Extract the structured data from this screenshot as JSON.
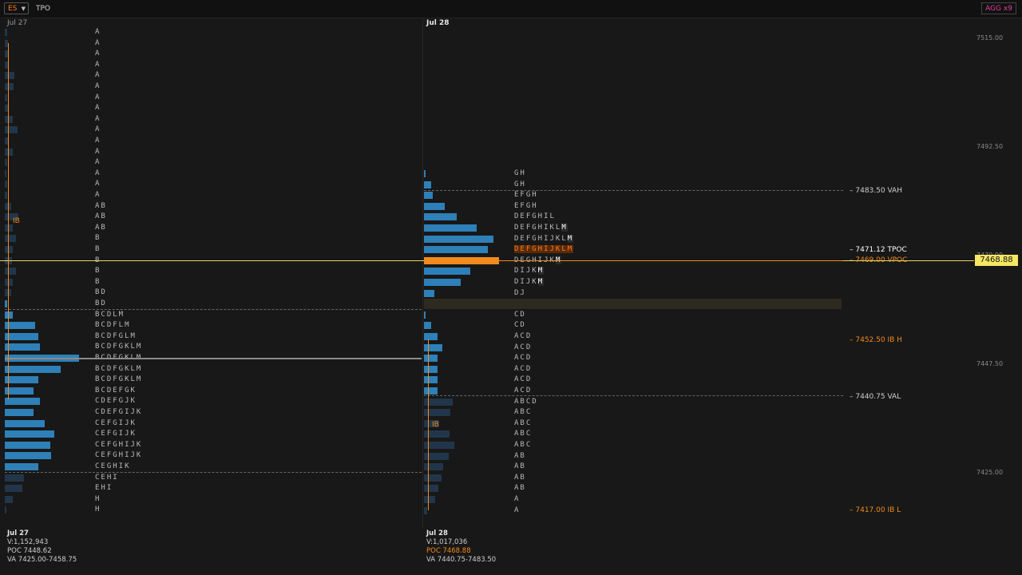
{
  "toolbar": {
    "symbol": "ES",
    "view": "TPO",
    "aggregation": "AGG x9"
  },
  "axis": {
    "ticks": [
      "7515.00",
      "7492.50",
      "7470.00",
      "7447.50",
      "7425.00"
    ]
  },
  "last_price": "7468.88",
  "levels": {
    "vah": "7483.50 VAH",
    "tpoc": "7471.12 TPOC",
    "vpoc": "7469.00 VPOC",
    "ibh": "7452.50 IB H",
    "val": "7440.75 VAL",
    "ibl": "7417.00 IB L"
  },
  "sessions": [
    {
      "date": "Jul 27",
      "ib_label": "IB",
      "tpo_rows": [
        "A",
        "A",
        "A",
        "A",
        "A",
        "A",
        "A",
        "A",
        "A",
        "A",
        "A",
        "A",
        "A",
        "A",
        "A",
        "A",
        "AB",
        "AB",
        "AB",
        "B",
        "B",
        "B",
        "B",
        "B",
        "BD",
        "BD",
        "BCDLM",
        "BCDFLM",
        "BCDFGLM",
        "BCDFGKLM",
        "BCDFGKLM",
        "BCDFGKLM",
        "BCDFGKLM",
        "BCDEFGK",
        "CDEFGJK",
        "CDEFGIJK",
        "CEFGIJK",
        "CEFGIJK",
        "CEFGHIJK",
        "CEFGHIJK",
        "CEGHIK",
        "CEHI",
        "EHI",
        "H",
        "H"
      ],
      "stats": {
        "volume": "V:1,152,943",
        "poc": "POC 7448.62",
        "va": "VA 7425.00-7458.75"
      }
    },
    {
      "date": "Jul 28",
      "ib_label": "IB",
      "tpo_rows": [
        "GH",
        "GH",
        "EFGH",
        "EFGH",
        "DEFGHIL",
        "DEFGHIKLM",
        "DEFGHIJKLM",
        "DEFGHIJKLM",
        "DEGHIJKM",
        "DIJKM",
        "DIJKM",
        "DJ",
        "D",
        "CD",
        "CD",
        "ACD",
        "ACD",
        "ACD",
        "ACD",
        "ACD",
        "ACD",
        "ABCD",
        "ABC",
        "ABC",
        "ABC",
        "ABC",
        "AB",
        "AB",
        "AB",
        "AB",
        "A",
        "A"
      ],
      "stats": {
        "volume": "V:1,017,036",
        "poc": "POC 7468.88",
        "va": "VA 7440.75-7483.50"
      }
    }
  ]
}
